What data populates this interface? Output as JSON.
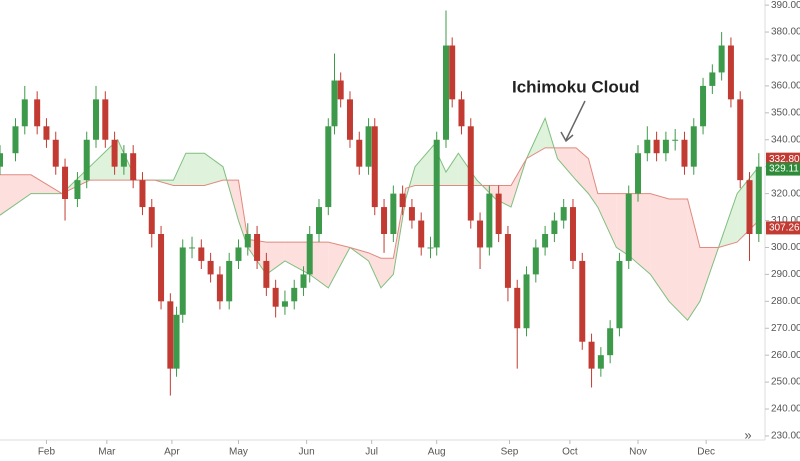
{
  "chart_data": {
    "type": "candlestick",
    "annotation": "Ichimoku Cloud",
    "scroll_button": "»",
    "xlim": [
      0,
      247
    ],
    "ylim": [
      228.5,
      391.9
    ],
    "xticks": [
      {
        "value": 15,
        "label": "Feb"
      },
      {
        "value": 34.5,
        "label": "Mar"
      },
      {
        "value": 55.5,
        "label": "Apr"
      },
      {
        "value": 77,
        "label": "May"
      },
      {
        "value": 99,
        "label": "Jun"
      },
      {
        "value": 120,
        "label": "Jul"
      },
      {
        "value": 141,
        "label": "Aug"
      },
      {
        "value": 164.5,
        "label": "Sep"
      },
      {
        "value": 184,
        "label": "Oct"
      },
      {
        "value": 206,
        "label": "Nov"
      },
      {
        "value": 228,
        "label": "Dec"
      }
    ],
    "yticks": [
      {
        "value": 230,
        "label": "230.00"
      },
      {
        "value": 240,
        "label": "240.00"
      },
      {
        "value": 250,
        "label": "250.00"
      },
      {
        "value": 260,
        "label": "260.00"
      },
      {
        "value": 270,
        "label": "270.00"
      },
      {
        "value": 280,
        "label": "280.00"
      },
      {
        "value": 290,
        "label": "290.00"
      },
      {
        "value": 300,
        "label": "300.00"
      },
      {
        "value": 310,
        "label": "310.00"
      },
      {
        "value": 320,
        "label": "320.00"
      },
      {
        "value": 330,
        "label": "330.00"
      },
      {
        "value": 340,
        "label": "340.00"
      },
      {
        "value": 350,
        "label": "350.00"
      },
      {
        "value": 360,
        "label": "360.00"
      },
      {
        "value": 370,
        "label": "370.00"
      },
      {
        "value": 380,
        "label": "380.00"
      },
      {
        "value": 390,
        "label": "390.00"
      }
    ],
    "up_color": "#3d9a4a",
    "down_color": "#c23b32",
    "x": [
      0,
      5,
      8,
      12,
      15,
      18,
      21,
      25,
      28,
      31,
      34,
      37,
      40,
      43,
      46,
      49,
      52,
      55,
      57,
      59,
      62,
      65,
      68,
      71,
      74,
      77,
      80,
      83,
      86,
      89,
      92,
      95,
      98,
      100,
      103,
      106,
      108,
      110,
      113,
      116,
      119,
      121,
      124,
      127,
      130,
      133,
      136,
      139,
      141,
      144,
      146,
      149,
      152,
      155,
      158,
      161,
      164,
      167,
      170,
      173,
      176,
      179,
      182,
      185,
      188,
      191,
      194,
      197,
      200,
      203,
      206,
      209,
      212,
      215,
      218,
      221,
      224,
      227,
      230,
      233,
      236,
      239,
      242,
      245
    ],
    "open": [
      330,
      335,
      345,
      355,
      345,
      340,
      330,
      318,
      325,
      340,
      355,
      340,
      330,
      335,
      325,
      315,
      305,
      280,
      255,
      275,
      300,
      300,
      295,
      290,
      280,
      295,
      300,
      305,
      295,
      285,
      278,
      280,
      285,
      290,
      305,
      315,
      345,
      362,
      355,
      340,
      330,
      345,
      315,
      305,
      320,
      315,
      310,
      300,
      300,
      340,
      375,
      355,
      345,
      310,
      300,
      320,
      305,
      285,
      270,
      290,
      300,
      305,
      310,
      315,
      295,
      265,
      255,
      260,
      270,
      295,
      320,
      335,
      340,
      335,
      340,
      340,
      330,
      345,
      360,
      365,
      375,
      355,
      325,
      305
    ],
    "high": [
      338,
      348,
      360,
      358,
      348,
      343,
      333,
      328,
      343,
      360,
      358,
      343,
      338,
      338,
      328,
      318,
      308,
      283,
      278,
      303,
      304,
      303,
      298,
      293,
      298,
      303,
      309,
      308,
      298,
      288,
      284,
      288,
      293,
      308,
      318,
      348,
      372,
      365,
      358,
      343,
      348,
      348,
      318,
      323,
      323,
      318,
      313,
      304,
      343,
      388,
      378,
      358,
      348,
      313,
      323,
      323,
      308,
      288,
      293,
      303,
      308,
      313,
      318,
      318,
      298,
      268,
      263,
      273,
      298,
      323,
      338,
      345,
      343,
      343,
      344,
      343,
      348,
      363,
      368,
      380,
      378,
      358,
      328,
      335
    ],
    "low": [
      327,
      332,
      342,
      342,
      337,
      327,
      310,
      315,
      322,
      337,
      337,
      327,
      327,
      322,
      312,
      300,
      277,
      245,
      252,
      272,
      296,
      292,
      287,
      277,
      277,
      292,
      297,
      292,
      282,
      274,
      275,
      277,
      282,
      287,
      302,
      312,
      342,
      352,
      337,
      327,
      327,
      312,
      298,
      302,
      312,
      307,
      297,
      296,
      297,
      337,
      352,
      342,
      307,
      292,
      297,
      302,
      280,
      255,
      267,
      287,
      297,
      302,
      307,
      292,
      262,
      248,
      252,
      257,
      267,
      292,
      317,
      332,
      332,
      332,
      336,
      327,
      327,
      342,
      357,
      362,
      352,
      322,
      295,
      302
    ],
    "close": [
      335,
      345,
      355,
      345,
      340,
      330,
      318,
      325,
      340,
      355,
      340,
      330,
      335,
      325,
      315,
      305,
      280,
      255,
      275,
      300,
      300,
      295,
      290,
      280,
      295,
      300,
      305,
      295,
      285,
      278,
      280,
      285,
      290,
      305,
      315,
      345,
      362,
      355,
      340,
      330,
      345,
      315,
      305,
      320,
      315,
      310,
      300,
      300,
      340,
      375,
      355,
      345,
      310,
      300,
      320,
      305,
      285,
      270,
      290,
      300,
      305,
      310,
      315,
      295,
      265,
      255,
      260,
      270,
      295,
      320,
      335,
      340,
      335,
      340,
      340,
      330,
      345,
      360,
      365,
      375,
      355,
      325,
      305,
      330
    ],
    "cloud": {
      "x": [
        0,
        10,
        20,
        29,
        38,
        44,
        50,
        56,
        60,
        66,
        72,
        77,
        80,
        86,
        92,
        100,
        106,
        113,
        119,
        123,
        127,
        131,
        134,
        140,
        144,
        148,
        154,
        160,
        165,
        170,
        176,
        180,
        186,
        190,
        193,
        199,
        203,
        210,
        216,
        222,
        226,
        232,
        238,
        245
      ],
      "span_a": [
        312,
        320,
        320,
        330,
        340,
        325,
        325,
        325,
        335,
        335,
        330,
        310,
        300,
        290,
        295,
        290,
        285,
        300,
        295,
        285,
        290,
        318,
        330,
        338,
        328,
        335,
        325,
        318,
        315,
        333,
        348,
        333,
        325,
        320,
        315,
        300,
        297,
        290,
        280,
        273,
        280,
        300,
        320,
        330
      ],
      "span_b": [
        327,
        327,
        320,
        325,
        325,
        325,
        325,
        323,
        323,
        323,
        325,
        325,
        303,
        302,
        302,
        302,
        302,
        300,
        298,
        296,
        296,
        322,
        323,
        323,
        323,
        323,
        323,
        323,
        323,
        333,
        337,
        337,
        337,
        333,
        320,
        320,
        320,
        320,
        318,
        318,
        300,
        300,
        302,
        310
      ],
      "span_a_color": "#7fbf7f",
      "span_b_color": "#e08a80",
      "bull_fill": "#dff2dc",
      "bear_fill": "#fde0de"
    },
    "price_labels": [
      {
        "value": 332.8,
        "label": "332.80",
        "color": "#c23b32"
      },
      {
        "value": 329.11,
        "label": "329.11",
        "color": "#2e8b3a"
      },
      {
        "value": 307.26,
        "label": "307.26",
        "color": "#c23b32"
      }
    ]
  }
}
